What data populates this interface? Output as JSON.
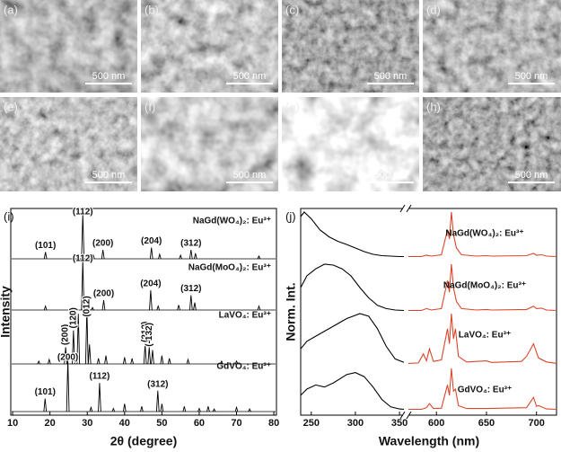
{
  "images": [
    {
      "label": "(a)",
      "scale_bar": "500 nm"
    },
    {
      "label": "(b)",
      "scale_bar": "500 nm"
    },
    {
      "label": "(c)",
      "scale_bar": "500 nm"
    },
    {
      "label": "(d)",
      "scale_bar": "500 nm"
    },
    {
      "label": "(e)",
      "scale_bar": "500 nm"
    },
    {
      "label": "(f)",
      "scale_bar": "500 nm"
    },
    {
      "label": "(g)",
      "scale_bar": "500 nm"
    },
    {
      "label": "(h)",
      "scale_bar": "500 nm"
    }
  ],
  "chart_data": [
    {
      "type": "peaks",
      "panel_label": "(i)",
      "xlabel": "2θ (degree)",
      "ylabel": "Intensity",
      "xlim": [
        9.5,
        80.7
      ],
      "xticks": [
        10,
        20,
        30,
        40,
        50,
        60,
        70,
        80
      ],
      "series": [
        {
          "name": "NaGd(WO₄)₂: Eu³⁺",
          "color": "#000000",
          "x": [
            18.8,
            28.8,
            31.6,
            34.2,
            47.2,
            49.4,
            55,
            57.8,
            59,
            76
          ],
          "values": [
            15,
            100,
            8,
            20,
            25,
            10,
            8,
            20,
            12,
            6
          ],
          "annotations": [
            {
              "label": "(101)",
              "x": 18.8
            },
            {
              "label": "(112)",
              "x": 28.8
            },
            {
              "label": "(200)",
              "x": 34.2
            },
            {
              "label": "(204)",
              "x": 47.2
            },
            {
              "label": "(312)",
              "x": 57.8
            }
          ]
        },
        {
          "name": "NaGd(MoO₄)₂: Eu³⁺",
          "color": "#000000",
          "x": [
            18.8,
            28.8,
            31.4,
            34.4,
            47,
            49,
            54.5,
            57.8,
            58.8,
            76
          ],
          "values": [
            8,
            100,
            5,
            20,
            40,
            8,
            10,
            30,
            15,
            8
          ],
          "annotations": [
            {
              "label": "(112)",
              "x": 28.8
            },
            {
              "label": "(200)",
              "x": 34.4
            },
            {
              "label": "(204)",
              "x": 47
            },
            {
              "label": "(312)",
              "x": 57.8
            }
          ]
        },
        {
          "name": "LaVO₄: Eu³⁺",
          "color": "#000000",
          "x": [
            17,
            19.8,
            24.2,
            26.3,
            27.6,
            29.9,
            30.6,
            33,
            35,
            40,
            42,
            45.5,
            46.6,
            47.5,
            50,
            52,
            57,
            66,
            70
          ],
          "values": [
            5,
            8,
            30,
            60,
            90,
            100,
            35,
            10,
            15,
            12,
            10,
            35,
            30,
            25,
            15,
            10,
            8,
            5,
            5
          ],
          "annotations": [
            {
              "label": "(200)",
              "x": 24.2
            },
            {
              "label": "(120)",
              "x": 26.3
            },
            {
              "label": "(012)",
              "x": 29.9
            },
            {
              "label": "(212)",
              "x": 45.5
            },
            {
              "label": "(-132)",
              "x": 46.6
            }
          ]
        },
        {
          "name": "GdVO₄: Eu³⁺",
          "color": "#000000",
          "x": [
            18.7,
            24.8,
            31,
            33.3,
            37,
            40,
            44.6,
            48.9,
            50,
            56,
            60,
            62.4,
            64,
            70,
            73.5
          ],
          "values": [
            25,
            100,
            8,
            55,
            6,
            15,
            10,
            40,
            15,
            10,
            6,
            10,
            5,
            8,
            5
          ],
          "annotations": [
            {
              "label": "(101)",
              "x": 18.7
            },
            {
              "label": "(200)",
              "x": 24.8
            },
            {
              "label": "(112)",
              "x": 33.3
            },
            {
              "label": "(312)",
              "x": 48.9
            }
          ]
        }
      ]
    },
    {
      "type": "line",
      "panel_label": "(j)",
      "xlabel": "Wavelength (nm)",
      "ylabel": "Norm. Int.",
      "xlim": [
        238,
        720
      ],
      "axis_break": [
        355,
        572
      ],
      "xticks": [
        250,
        300,
        350,
        600,
        650,
        700
      ],
      "series": [
        {
          "name": "NaGd(WO₄)₂: Eu³⁺",
          "excitation": {
            "color": "#000000",
            "x": [
              238,
              242,
              250,
              260,
              270,
              280,
              290,
              300,
              310,
              320,
              330,
              340,
              350,
              355
            ],
            "values": [
              0.9,
              1,
              0.85,
              0.6,
              0.45,
              0.35,
              0.28,
              0.2,
              0.12,
              0.06,
              0.03,
              0.02,
              0.01,
              0.01
            ]
          },
          "emission": {
            "color": "#d9472b",
            "x": [
              572,
              585,
              590,
              595,
              605,
              611,
              613,
              615,
              617,
              620,
              625,
              640,
              650,
              655,
              690,
              697,
              700,
              705,
              710,
              720
            ],
            "values": [
              0.01,
              0.01,
              0.04,
              0.02,
              0.05,
              0.6,
              0.4,
              1,
              0.5,
              0.2,
              0.05,
              0.02,
              0.03,
              0.02,
              0.03,
              0.08,
              0.04,
              0.05,
              0.02,
              0.01
            ]
          }
        },
        {
          "name": "NaGd(MoO₄)₂: Eu³⁺",
          "excitation": {
            "color": "#000000",
            "x": [
              238,
              245,
              255,
              265,
              275,
              285,
              295,
              305,
              315,
              325,
              335,
              345,
              355
            ],
            "values": [
              0.5,
              0.75,
              0.9,
              1,
              0.98,
              0.9,
              0.75,
              0.5,
              0.28,
              0.12,
              0.05,
              0.02,
              0.01
            ]
          },
          "emission": {
            "color": "#d9472b",
            "x": [
              572,
              585,
              590,
              595,
              605,
              611,
              613,
              615,
              617,
              620,
              625,
              640,
              650,
              655,
              690,
              697,
              700,
              705,
              710,
              720
            ],
            "values": [
              0.01,
              0.01,
              0.05,
              0.02,
              0.05,
              0.65,
              0.4,
              1,
              0.5,
              0.2,
              0.05,
              0.02,
              0.03,
              0.02,
              0.03,
              0.1,
              0.05,
              0.06,
              0.02,
              0.01
            ]
          }
        },
        {
          "name": "LaVO₄: Eu³⁺",
          "excitation": {
            "color": "#000000",
            "x": [
              238,
              245,
              260,
              275,
              290,
              305,
              315,
              325,
              335,
              345,
              355
            ],
            "values": [
              0.3,
              0.45,
              0.6,
              0.75,
              0.9,
              1,
              0.95,
              0.7,
              0.35,
              0.1,
              0.03
            ]
          },
          "emission": {
            "color": "#d9472b",
            "x": [
              572,
              582,
              587,
              590,
              593,
              597,
              605,
              611,
              613,
              615,
              617,
              619,
              622,
              630,
              650,
              655,
              685,
              690,
              697,
              702,
              710,
              720
            ],
            "values": [
              0.01,
              0.02,
              0.2,
              0.06,
              0.3,
              0.05,
              0.08,
              0.7,
              0.4,
              1,
              0.5,
              0.7,
              0.15,
              0.04,
              0.06,
              0.03,
              0.05,
              0.15,
              0.4,
              0.12,
              0.04,
              0.01
            ]
          }
        },
        {
          "name": "GdVO₄: Eu³⁺",
          "excitation": {
            "color": "#000000",
            "x": [
              238,
              245,
              255,
              265,
              275,
              290,
              300,
              310,
              320,
              330,
              340,
              350,
              355
            ],
            "values": [
              0.35,
              0.5,
              0.6,
              0.55,
              0.65,
              0.85,
              0.9,
              0.8,
              0.55,
              0.25,
              0.07,
              0.02,
              0.01
            ]
          },
          "emission": {
            "color": "#d9472b",
            "x": [
              572,
              585,
              590,
              593,
              597,
              605,
              611,
              613,
              615,
              617,
              619,
              622,
              630,
              650,
              690,
              697,
              700,
              702,
              710,
              720
            ],
            "values": [
              0.01,
              0.01,
              0.05,
              0.15,
              0.03,
              0.04,
              0.6,
              0.35,
              1,
              0.45,
              0.5,
              0.1,
              0.03,
              0.03,
              0.05,
              0.3,
              0.08,
              0.1,
              0.02,
              0.01
            ]
          }
        }
      ]
    }
  ]
}
